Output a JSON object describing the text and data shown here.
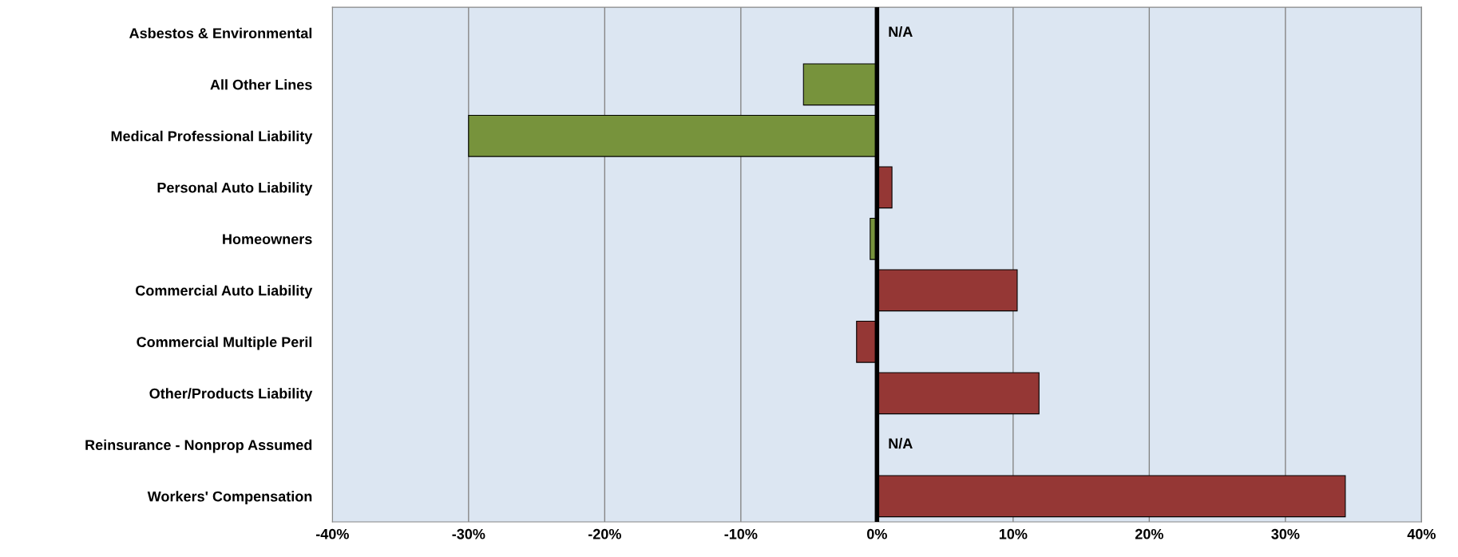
{
  "chart_data": {
    "type": "bar",
    "orientation": "horizontal",
    "categories": [
      "Asbestos & Environmental",
      "All Other Lines",
      "Medical Professional Liability",
      "Personal Auto Liability",
      "Homeowners",
      "Commercial Auto Liability",
      "Commercial Multiple Peril",
      "Other/Products Liability",
      "Reinsurance - Nonprop Assumed",
      "Workers' Compensation"
    ],
    "values": [
      null,
      -5.4,
      -30,
      1.1,
      -0.5,
      10.3,
      -1.5,
      11.9,
      null,
      34.4
    ],
    "colors": [
      "#77933c",
      "#77933c",
      "#77933c",
      "#953735",
      "#77933c",
      "#953735",
      "#953735",
      "#953735",
      "#953735",
      "#953735"
    ],
    "xlim": [
      -40,
      40
    ],
    "xticks": [
      {
        "value": -40,
        "label": "-40%"
      },
      {
        "value": -30,
        "label": "-30%"
      },
      {
        "value": -20,
        "label": "-20%"
      },
      {
        "value": -10,
        "label": "-10%"
      },
      {
        "value": 0,
        "label": "0%"
      },
      {
        "value": 10,
        "label": "10%"
      },
      {
        "value": 20,
        "label": "20%"
      },
      {
        "value": 30,
        "label": "30%"
      },
      {
        "value": 40,
        "label": "40%"
      }
    ],
    "grid": "x",
    "ref_lines": [
      {
        "axis": "x",
        "value": 0,
        "color": "#000000"
      }
    ],
    "annotations": [
      {
        "text": "N/A",
        "x": 0,
        "y": "Asbestos & Environmental"
      },
      {
        "text": "N/A",
        "x": 0,
        "y": "Reinsurance - Nonprop Assumed"
      }
    ]
  }
}
